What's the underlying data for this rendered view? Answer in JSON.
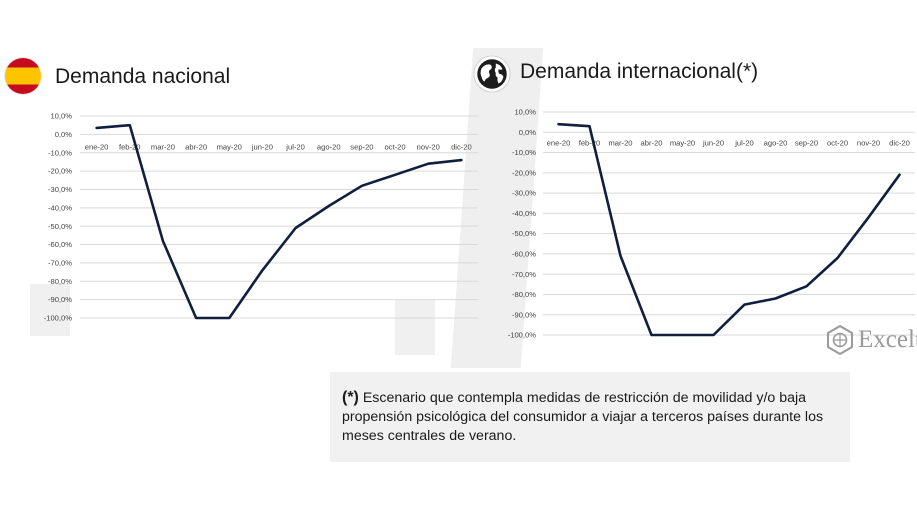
{
  "left_panel": {
    "title": "Demanda nacional",
    "flag_icon": "spain-flag-icon"
  },
  "right_panel": {
    "title": "Demanda internacional(*)",
    "globe_icon": "globe-icon"
  },
  "logo": {
    "text": "Excelt",
    "icon": "hexagon-logo-icon"
  },
  "note": {
    "marker": "(*)",
    "text": " Escenario que contempla medidas de restricción de movilidad y/o baja propensión psicológica del consumidor a  viajar a terceros países durante los meses centrales de verano."
  },
  "colors": {
    "series": "#0f1f3d",
    "grid": "#d9d9d9"
  },
  "chart_data": [
    {
      "type": "line",
      "title": "Demanda nacional",
      "categories": [
        "ene-20",
        "feb-20",
        "mar-20",
        "abr-20",
        "may-20",
        "jun-20",
        "jul-20",
        "ago-20",
        "sep-20",
        "oct-20",
        "nov-20",
        "dic-20"
      ],
      "series": [
        {
          "values": [
            3.5,
            5,
            -58,
            -100,
            -100,
            -74,
            -51,
            -39,
            -28,
            -22,
            -16,
            -14
          ]
        }
      ],
      "y_ticks": [
        "10,0%",
        "0,0%",
        "-10,0%",
        "-20,0%",
        "-30,0%",
        "-40,0%",
        "-50,0%",
        "-60,0%",
        "-70,0%",
        "-80,0%",
        "-90,0%",
        "-100,0%"
      ],
      "ylim": [
        -100,
        10
      ],
      "grid": true,
      "x_axis_position": "top"
    },
    {
      "type": "line",
      "title": "Demanda internacional(*)",
      "categories": [
        "ene-20",
        "feb-20",
        "mar-20",
        "abr-20",
        "may-20",
        "jun-20",
        "jul-20",
        "ago-20",
        "sep-20",
        "oct-20",
        "nov-20",
        "dic-20"
      ],
      "series": [
        {
          "values": [
            4,
            3,
            -61,
            -100,
            -100,
            -100,
            -85,
            -82,
            -76,
            -62,
            -42,
            -21
          ]
        }
      ],
      "y_ticks": [
        "10,0%",
        "0,0%",
        "-10,0%",
        "-20,0%",
        "-30,0%",
        "-40,0%",
        "-50,0%",
        "-60,0%",
        "-70,0%",
        "-80,0%",
        "-90,0%",
        "-100,0%"
      ],
      "ylim": [
        -100,
        10
      ],
      "grid": true,
      "x_axis_position": "top"
    }
  ]
}
